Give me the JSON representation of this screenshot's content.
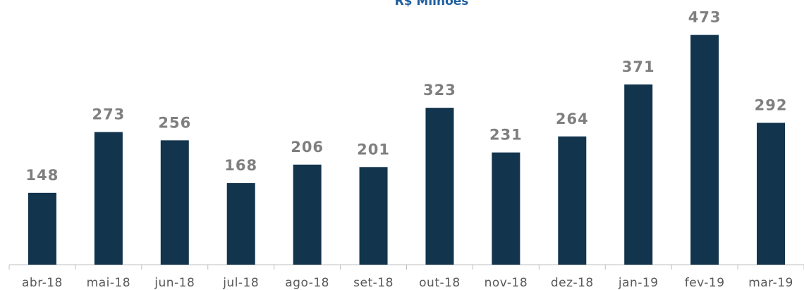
{
  "chart_data": {
    "type": "bar",
    "title": "R$ Milhões",
    "categories": [
      "abr-18",
      "mai-18",
      "jun-18",
      "jul-18",
      "ago-18",
      "set-18",
      "out-18",
      "nov-18",
      "dez-18",
      "jan-19",
      "fev-19",
      "mar-19"
    ],
    "values": [
      148,
      273,
      256,
      168,
      206,
      201,
      323,
      231,
      264,
      371,
      473,
      292
    ],
    "color": "#12344d",
    "ylim": [
      0,
      500
    ]
  }
}
